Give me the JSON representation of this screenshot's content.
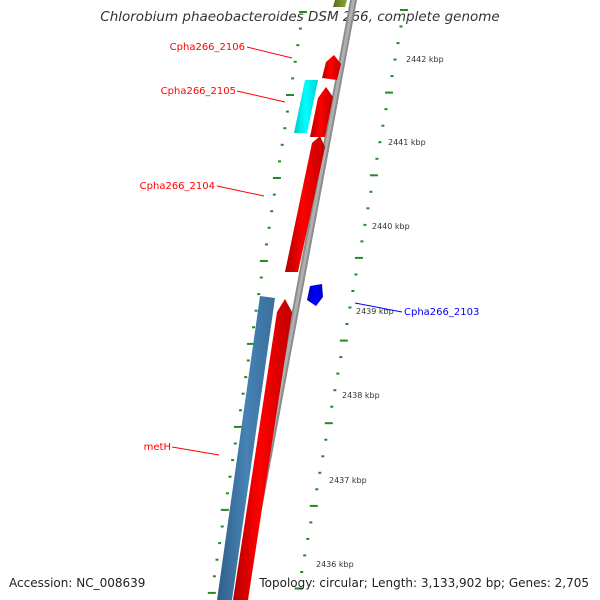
{
  "title": "Chlorobium phaeobacteroides DSM 266, complete genome",
  "footer": {
    "accession": "Accession: NC_008639",
    "summary": "Topology: circular; Length: 3,133,902 bp; Genes: 2,705"
  },
  "scale": {
    "unit": "kbp",
    "ticks": [
      "2442 kbp",
      "2441 kbp",
      "2440 kbp",
      "2439 kbp",
      "2438 kbp",
      "2437 kbp",
      "2436 kbp"
    ]
  },
  "genes": [
    {
      "label": "Cpha266_2106",
      "color": "#ff0000",
      "strand": "forward"
    },
    {
      "label": "Cpha266_2105",
      "color": "#ff0000",
      "strand": "forward"
    },
    {
      "label": "Cpha266_2104",
      "color": "#ff0000",
      "strand": "forward"
    },
    {
      "label": "Cpha266_2103",
      "color": "#0000ff",
      "strand": "forward"
    },
    {
      "label": "metH",
      "color": "#ff0000",
      "strand": "forward"
    }
  ],
  "features": [
    {
      "name": "Cpha266_2105 feature",
      "color": "#00ffff"
    },
    {
      "name": "metH feature",
      "color": "#4682b4"
    },
    {
      "name": "top feature",
      "color": "#6b8e23"
    }
  ],
  "colors": {
    "backbone": "#808080",
    "tick": "#228b22",
    "label_red": "#ff0000",
    "label_blue": "#0000ff"
  }
}
